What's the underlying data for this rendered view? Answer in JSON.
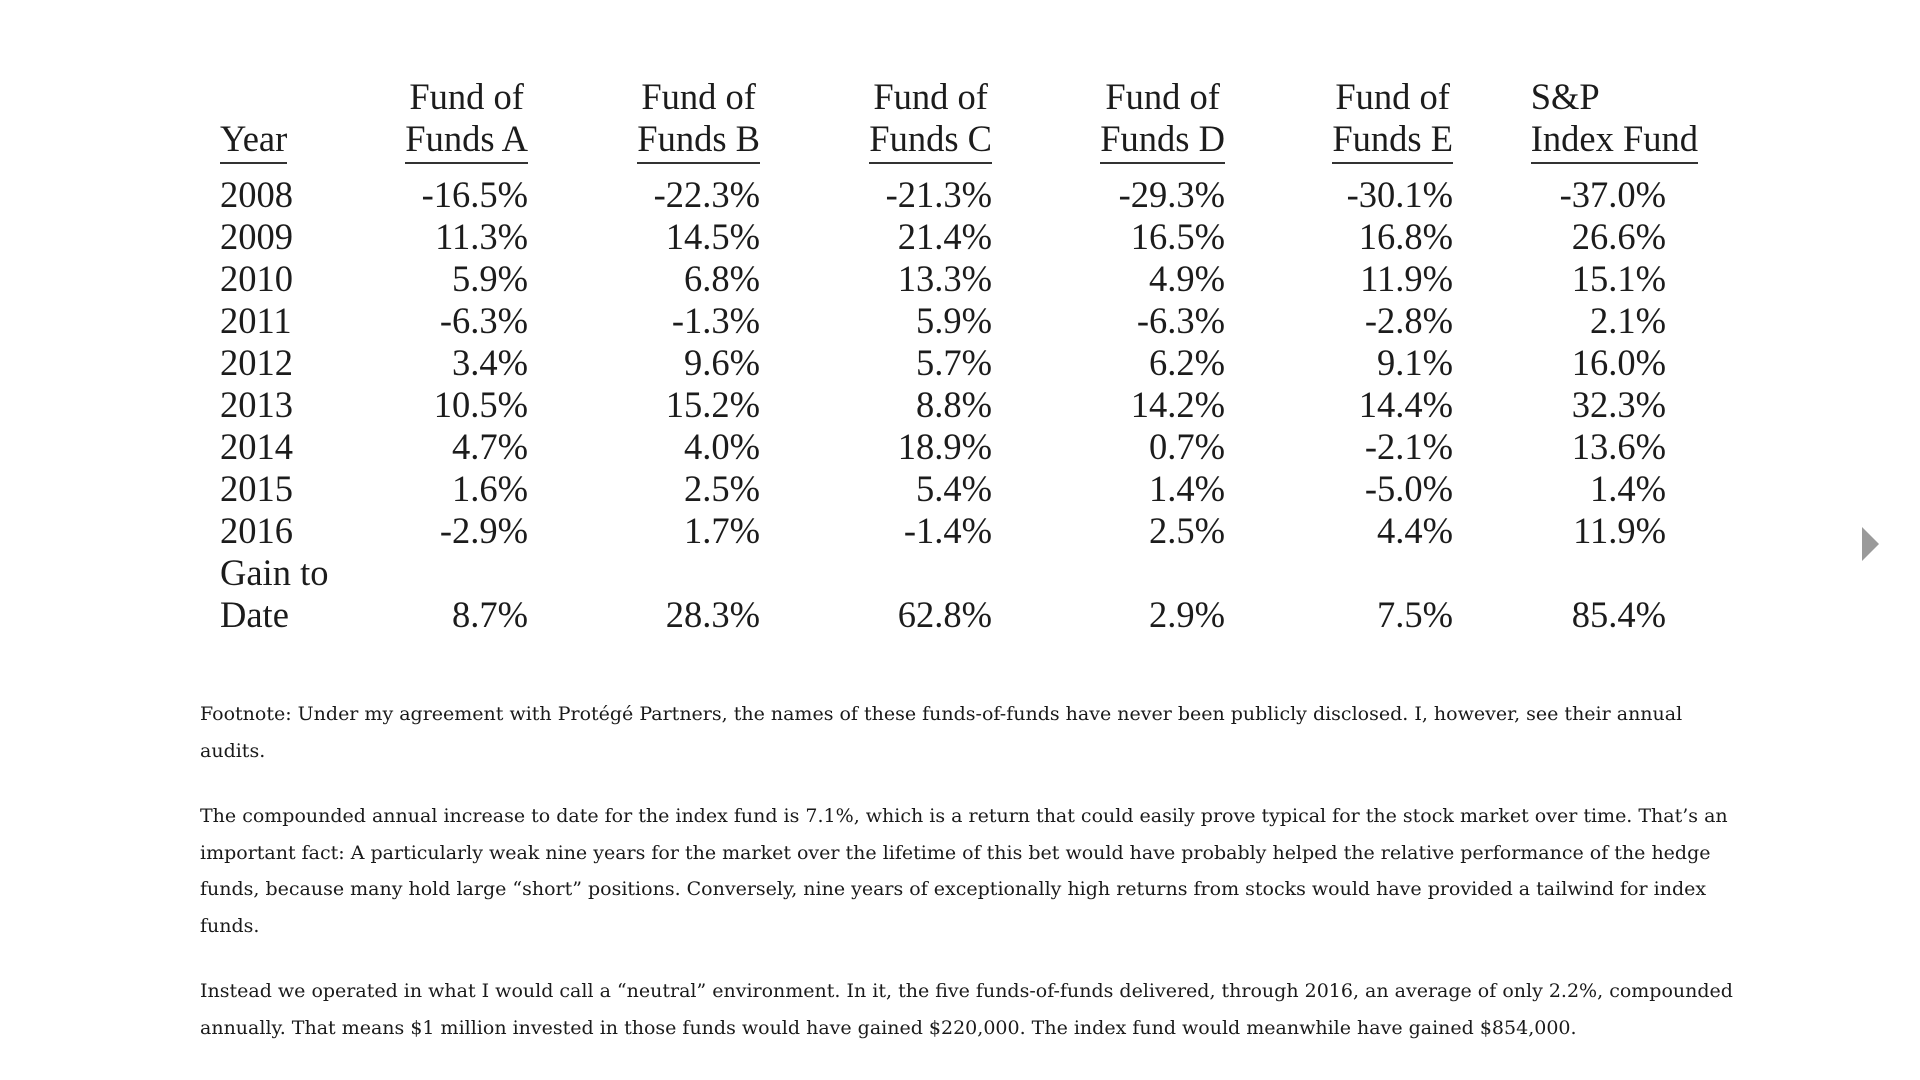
{
  "table": {
    "headers": [
      {
        "line1": "",
        "line2": "Year"
      },
      {
        "line1": "Fund of",
        "line2": "Funds A"
      },
      {
        "line1": "Fund of",
        "line2": "Funds B"
      },
      {
        "line1": "Fund of",
        "line2": "Funds C"
      },
      {
        "line1": "Fund of",
        "line2": "Funds D"
      },
      {
        "line1": "Fund of",
        "line2": "Funds E"
      },
      {
        "line1": "S&P",
        "line2": "Index Fund"
      }
    ],
    "rows": [
      {
        "year": "2008",
        "a": "-16.5%",
        "b": "-22.3%",
        "c": "-21.3%",
        "d": "-29.3%",
        "e": "-30.1%",
        "sp": "-37.0%"
      },
      {
        "year": "2009",
        "a": "11.3%",
        "b": "14.5%",
        "c": "21.4%",
        "d": "16.5%",
        "e": "16.8%",
        "sp": "26.6%"
      },
      {
        "year": "2010",
        "a": "5.9%",
        "b": "6.8%",
        "c": "13.3%",
        "d": "4.9%",
        "e": "11.9%",
        "sp": "15.1%"
      },
      {
        "year": "2011",
        "a": "-6.3%",
        "b": "-1.3%",
        "c": "5.9%",
        "d": "-6.3%",
        "e": "-2.8%",
        "sp": "2.1%"
      },
      {
        "year": "2012",
        "a": "3.4%",
        "b": "9.6%",
        "c": "5.7%",
        "d": "6.2%",
        "e": "9.1%",
        "sp": "16.0%"
      },
      {
        "year": "2013",
        "a": "10.5%",
        "b": "15.2%",
        "c": "8.8%",
        "d": "14.2%",
        "e": "14.4%",
        "sp": "32.3%"
      },
      {
        "year": "2014",
        "a": "4.7%",
        "b": "4.0%",
        "c": "18.9%",
        "d": "0.7%",
        "e": "-2.1%",
        "sp": "13.6%"
      },
      {
        "year": "2015",
        "a": "1.6%",
        "b": "2.5%",
        "c": "5.4%",
        "d": "1.4%",
        "e": "-5.0%",
        "sp": "1.4%"
      },
      {
        "year": "2016",
        "a": "-2.9%",
        "b": "1.7%",
        "c": "-1.4%",
        "d": "2.5%",
        "e": "4.4%",
        "sp": "11.9%"
      }
    ],
    "total": {
      "label1": "Gain to",
      "label2": "Date",
      "a": "8.7%",
      "b": "28.3%",
      "c": "62.8%",
      "d": "2.9%",
      "e": "7.5%",
      "sp": "85.4%"
    }
  },
  "footnote": "Footnote: Under my agreement with Protégé Partners, the names of these funds-of-funds have never been publicly disclosed. I, however, see their annual audits.",
  "paragraph1": "The compounded annual increase to date for the index fund is 7.1%, which is a return that could easily prove typical for the stock market over time. That’s an important fact: A particularly weak nine years for the market over the lifetime of this bet would have probably helped the relative performance of the hedge funds, because many hold large “short” positions. Conversely, nine years of exceptionally high returns from stocks would have provided a tailwind for index funds.",
  "paragraph2": "Instead we operated in what I would call a “neutral” environment. In it, the five funds-of-funds delivered, through 2016, an average of only 2.2%, compounded annually. That means $1 million invested in those funds would have gained $220,000. The index fund would meanwhile have gained $854,000.",
  "nav": {
    "next_icon": "next-arrow-icon",
    "arrow_color": "#9a9a9a"
  }
}
